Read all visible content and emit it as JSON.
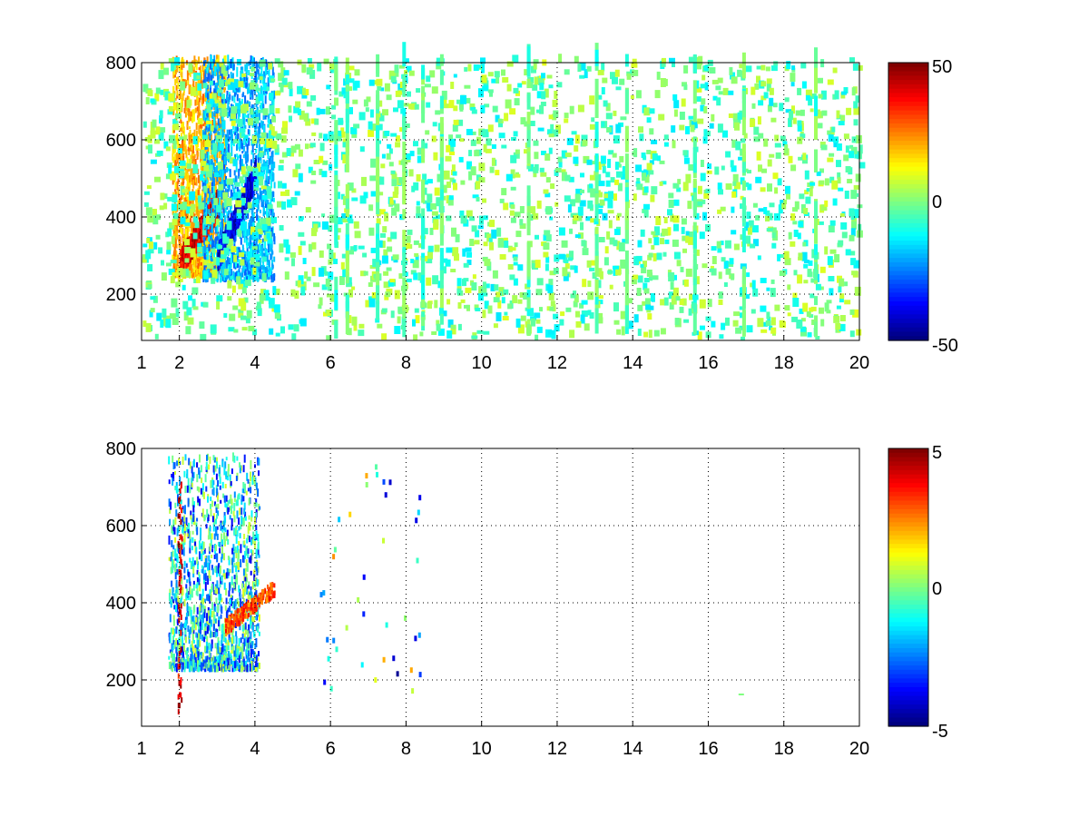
{
  "colormap": "jet",
  "chart_data": [
    {
      "type": "heatmap",
      "title": "",
      "xlabel": "",
      "ylabel": "",
      "xlim": [
        1,
        20
      ],
      "ylim": [
        80,
        800
      ],
      "xticks": [
        1,
        2,
        4,
        6,
        8,
        10,
        12,
        14,
        16,
        18,
        20
      ],
      "xtick_labels": [
        "1",
        "2",
        "4",
        "6",
        "8",
        "10",
        "12",
        "14",
        "16",
        "18",
        "20"
      ],
      "yticks": [
        200,
        400,
        600,
        800
      ],
      "ytick_labels": [
        "200",
        "400",
        "600",
        "800"
      ],
      "grid": true,
      "colorbar": {
        "clim": [
          -50,
          50
        ],
        "ticks": [
          50,
          0,
          -50
        ],
        "tick_labels": [
          "50",
          "0",
          "-50"
        ]
      },
      "features": [
        {
          "kind": "warm_band",
          "x": [
            1.8,
            3.2
          ],
          "y": [
            240,
            800
          ],
          "value": 20
        },
        {
          "kind": "hot_ridge",
          "x": [
            2.0,
            3.0
          ],
          "y": [
            270,
            420
          ],
          "value": 40
        },
        {
          "kind": "cool_band",
          "x": [
            2.6,
            4.5
          ],
          "y": [
            230,
            800
          ],
          "value": -20
        },
        {
          "kind": "cold_ridge",
          "x": [
            3.0,
            4.0
          ],
          "y": [
            280,
            500
          ],
          "value": -40
        },
        {
          "kind": "scattered_noise",
          "x": [
            1,
            20
          ],
          "y": [
            80,
            800
          ],
          "value_range": [
            -15,
            10
          ]
        }
      ],
      "stripes_x": [
        6.1,
        6.4,
        7.2,
        7.9,
        8.4,
        8.9,
        11.2,
        13.0,
        13.8,
        15.6,
        16.9,
        18.8
      ]
    },
    {
      "type": "heatmap",
      "title": "",
      "xlabel": "",
      "ylabel": "",
      "xlim": [
        1,
        20
      ],
      "ylim": [
        80,
        800
      ],
      "xticks": [
        1,
        2,
        4,
        6,
        8,
        10,
        12,
        14,
        16,
        18,
        20
      ],
      "xtick_labels": [
        "1",
        "2",
        "4",
        "6",
        "8",
        "10",
        "12",
        "14",
        "16",
        "18",
        "20"
      ],
      "yticks": [
        200,
        400,
        600,
        800
      ],
      "ytick_labels": [
        "200",
        "400",
        "600",
        "800"
      ],
      "grid": true,
      "colorbar": {
        "clim": [
          -5,
          5
        ],
        "ticks": [
          5,
          0,
          -5
        ],
        "tick_labels": [
          "5",
          "0",
          "-5"
        ]
      },
      "features": [
        {
          "kind": "mixed_cluster",
          "x": [
            1.7,
            4.1
          ],
          "y": [
            220,
            770
          ],
          "value_range": [
            -4,
            1
          ]
        },
        {
          "kind": "warm_ridge",
          "x": [
            3.2,
            4.5
          ],
          "y": [
            330,
            430
          ],
          "value": 3
        },
        {
          "kind": "hot_column",
          "x": [
            1.95,
            2.05
          ],
          "y": [
            100,
            730
          ],
          "value": 5
        },
        {
          "kind": "sparse_points",
          "x": [
            5.7,
            17
          ],
          "y": [
            160,
            760
          ],
          "value_range": [
            -5,
            3
          ]
        }
      ]
    }
  ]
}
